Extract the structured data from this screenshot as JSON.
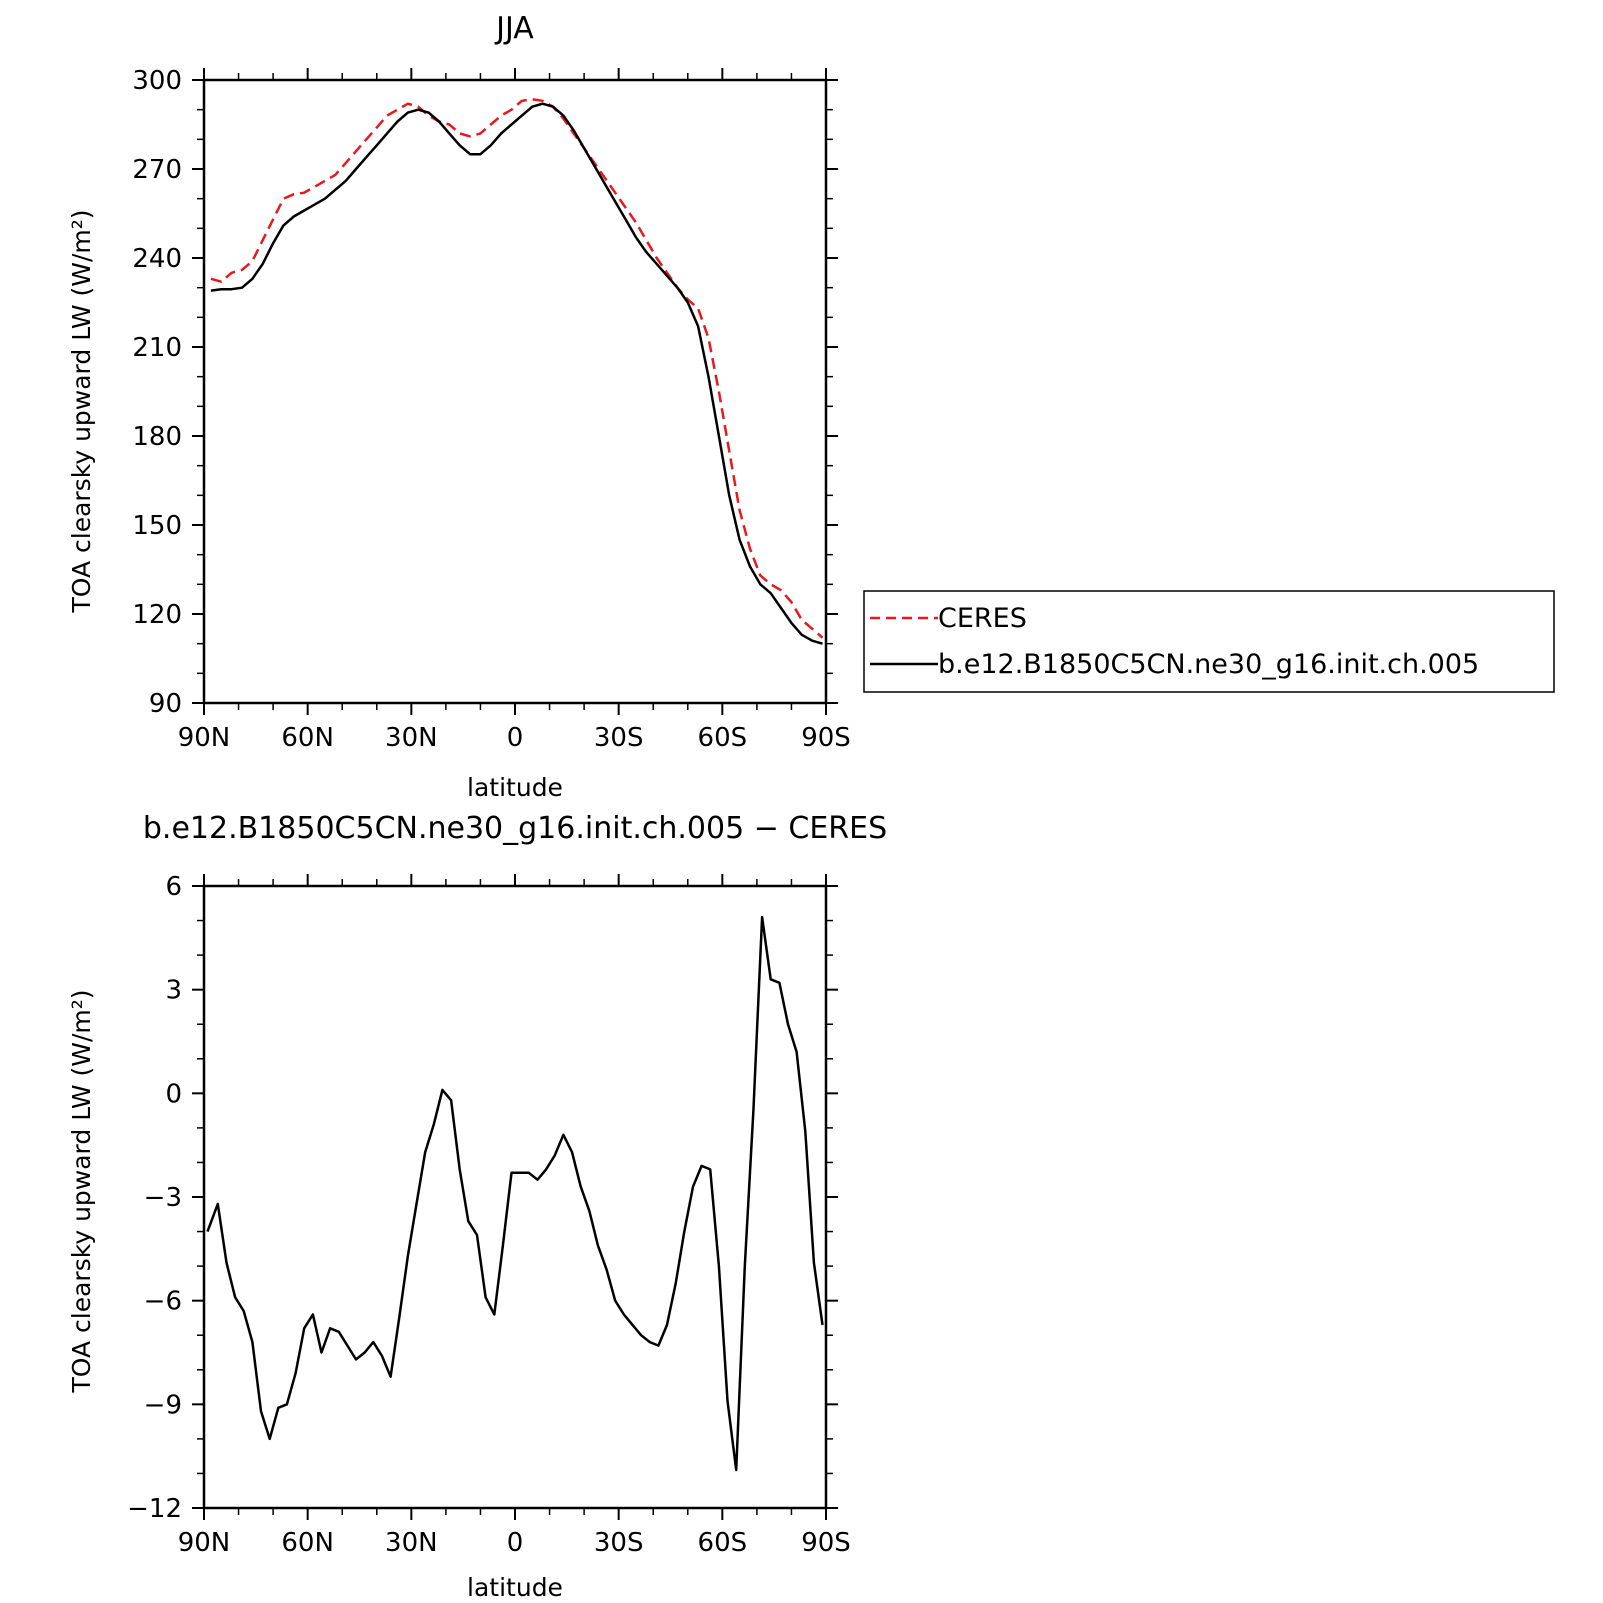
{
  "chart_data": [
    {
      "type": "line",
      "title": "JJA",
      "xlabel": "latitude",
      "ylabel": "TOA clearsky upward LW (W/m²)",
      "xlim": [
        90,
        -90
      ],
      "ylim": [
        90,
        300
      ],
      "xticks": [
        90,
        60,
        30,
        0,
        -30,
        -60,
        -90
      ],
      "xtick_labels": [
        "90N",
        "60N",
        "30N",
        "0",
        "30S",
        "60S",
        "90S"
      ],
      "yticks": [
        90,
        120,
        150,
        180,
        210,
        240,
        270,
        300
      ],
      "ytick_labels": [
        "90",
        "120",
        "150",
        "180",
        "210",
        "240",
        "270",
        "300"
      ],
      "legend_position": "right",
      "series": [
        {
          "name": "CERES",
          "color": "#e8191e",
          "dash": true,
          "x": [
            88,
            85,
            82,
            79,
            76,
            73,
            70,
            67,
            64,
            61,
            58,
            55,
            52,
            49,
            46,
            43,
            40,
            37,
            34,
            31,
            28,
            25,
            22,
            19,
            16,
            13,
            10,
            7,
            4,
            1,
            -2,
            -5,
            -8,
            -11,
            -14,
            -17,
            -20,
            -23,
            -26,
            -29,
            -32,
            -35,
            -38,
            -41,
            -44,
            -47,
            -50,
            -53,
            -56,
            -59,
            -62,
            -65,
            -68,
            -71,
            -74,
            -77,
            -80,
            -83,
            -86,
            -89
          ],
          "y": [
            233,
            232,
            235,
            236,
            239,
            246,
            253,
            260,
            261.5,
            262,
            264,
            266,
            268,
            272,
            276,
            280,
            284,
            288,
            290,
            292,
            291,
            288,
            286,
            285,
            282,
            281,
            282,
            285,
            288,
            290,
            293,
            293.5,
            293,
            291,
            287,
            282,
            277,
            272,
            267,
            262,
            257,
            252,
            246,
            240,
            235,
            230,
            226,
            223,
            213,
            195,
            175,
            155,
            142,
            133,
            130,
            128,
            124,
            118,
            115,
            112
          ]
        },
        {
          "name": "b.e12.B1850C5CN.ne30_g16.init.ch.005",
          "color": "#000000",
          "dash": false,
          "x": [
            88,
            85,
            82,
            79,
            76,
            73,
            70,
            67,
            64,
            61,
            58,
            55,
            52,
            49,
            46,
            43,
            40,
            37,
            34,
            31,
            28,
            25,
            22,
            19,
            16,
            13,
            10,
            7,
            4,
            1,
            -2,
            -5,
            -8,
            -11,
            -14,
            -17,
            -20,
            -23,
            -26,
            -29,
            -32,
            -35,
            -38,
            -41,
            -44,
            -47,
            -50,
            -53,
            -56,
            -59,
            -62,
            -65,
            -68,
            -71,
            -74,
            -77,
            -80,
            -83,
            -86,
            -89
          ],
          "y": [
            229,
            229.5,
            229.5,
            230,
            233,
            238,
            245,
            251,
            254,
            256,
            258,
            260,
            263,
            266,
            270,
            274,
            278,
            282,
            286,
            289,
            290,
            289,
            286,
            282,
            278,
            275,
            275,
            278,
            282,
            285,
            288,
            291,
            292,
            291,
            288,
            283,
            277,
            271,
            265,
            259,
            253,
            247,
            242,
            238,
            234,
            230,
            225,
            217,
            200,
            180,
            160,
            145,
            136,
            130,
            127,
            122,
            117,
            113,
            111,
            110
          ]
        }
      ]
    },
    {
      "type": "line",
      "title": "b.e12.B1850C5CN.ne30_g16.init.ch.005 − CERES",
      "xlabel": "latitude",
      "ylabel": "TOA clearsky upward LW (W/m²)",
      "xlim": [
        90,
        -90
      ],
      "ylim": [
        -12,
        6
      ],
      "xticks": [
        90,
        60,
        30,
        0,
        -30,
        -60,
        -90
      ],
      "xtick_labels": [
        "90N",
        "60N",
        "30N",
        "0",
        "30S",
        "60S",
        "90S"
      ],
      "yticks": [
        -12,
        -9,
        -6,
        -3,
        0,
        3,
        6
      ],
      "ytick_labels": [
        "−12",
        "−9",
        "−6",
        "−3",
        "0",
        "3",
        "6"
      ],
      "series": [
        {
          "color": "#000000",
          "dash": false,
          "x": [
            89,
            86,
            83.5,
            81,
            78.5,
            76,
            73.5,
            71,
            68.5,
            66,
            63.5,
            61,
            58.5,
            56,
            53.5,
            51,
            48.5,
            46,
            43.5,
            41,
            38.5,
            36,
            33.5,
            31,
            28.5,
            26,
            23.5,
            21,
            18.5,
            16,
            13.5,
            11,
            8.5,
            6,
            3.5,
            1,
            -1.5,
            -4,
            -6.5,
            -9,
            -11.5,
            -14,
            -16.5,
            -19,
            -21.5,
            -24,
            -26.5,
            -29,
            -31.5,
            -34,
            -36.5,
            -39,
            -41.5,
            -44,
            -46.5,
            -49,
            -51.5,
            -54,
            -56.5,
            -59,
            -61.5,
            -64,
            -66.5,
            -69,
            -71.5,
            -74,
            -76.5,
            -79,
            -81.5,
            -84,
            -86.5,
            -89
          ],
          "y": [
            -4.0,
            -3.2,
            -4.9,
            -5.9,
            -6.3,
            -7.2,
            -9.2,
            -10.0,
            -9.1,
            -9.0,
            -8.1,
            -6.8,
            -6.4,
            -7.5,
            -6.8,
            -6.9,
            -7.3,
            -7.7,
            -7.5,
            -7.2,
            -7.6,
            -8.2,
            -6.5,
            -4.7,
            -3.2,
            -1.7,
            -0.9,
            0.1,
            -0.2,
            -2.2,
            -3.7,
            -4.1,
            -5.9,
            -6.4,
            -4.4,
            -2.3,
            -2.3,
            -2.3,
            -2.5,
            -2.2,
            -1.8,
            -1.2,
            -1.7,
            -2.7,
            -3.4,
            -4.4,
            -5.1,
            -6.0,
            -6.4,
            -6.7,
            -7.0,
            -7.2,
            -7.3,
            -6.7,
            -5.5,
            -4.0,
            -2.7,
            -2.1,
            -2.2,
            -5.0,
            -8.9,
            -10.9,
            -5.0,
            -0.5,
            5.1,
            3.3,
            3.2,
            2.0,
            1.2,
            -1.1,
            -4.9,
            -6.7
          ]
        }
      ]
    }
  ]
}
